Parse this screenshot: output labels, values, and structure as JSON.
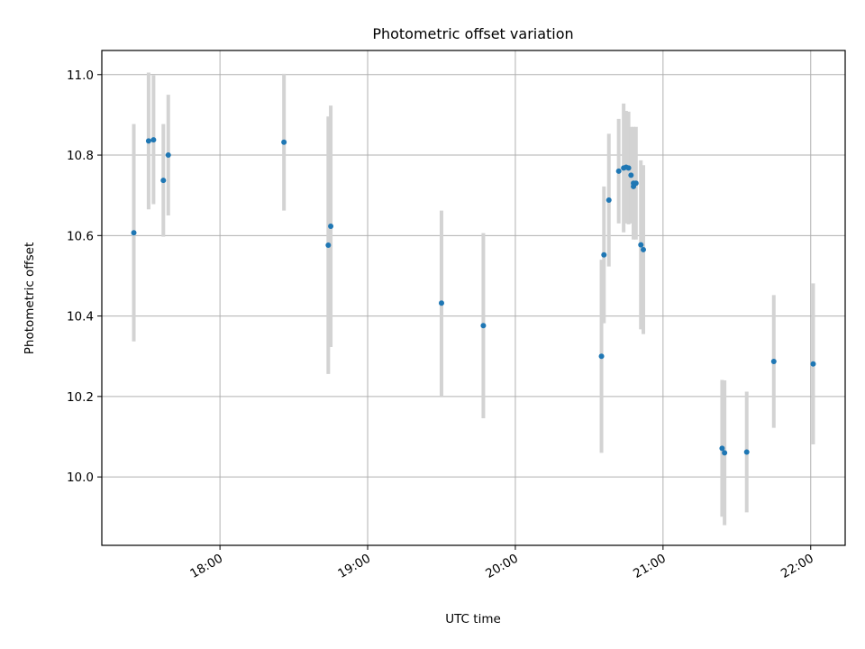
{
  "chart_data": {
    "type": "scatter",
    "title": "Photometric offset variation",
    "xlabel": "UTC time",
    "ylabel": "Photometric offset",
    "x_ticks": [
      "18:00",
      "19:00",
      "20:00",
      "21:00",
      "22:00"
    ],
    "y_ticks": [
      "10.0",
      "10.2",
      "10.4",
      "10.6",
      "10.8",
      "11.0"
    ],
    "xlim": [
      "17:12",
      "22:14"
    ],
    "ylim": [
      9.83,
      11.06
    ],
    "grid": true,
    "colors": {
      "point": "#1f77b4",
      "errorbar": "#d3d3d3"
    },
    "points": [
      {
        "time": "17:25",
        "y": 10.607,
        "err": 0.27
      },
      {
        "time": "17:31",
        "y": 10.835,
        "err": 0.17
      },
      {
        "time": "17:33",
        "y": 10.838,
        "err": 0.16
      },
      {
        "time": "17:37",
        "y": 10.737,
        "err": 0.14
      },
      {
        "time": "17:39",
        "y": 10.8,
        "err": 0.15
      },
      {
        "time": "18:26",
        "y": 10.832,
        "err": 0.17
      },
      {
        "time": "18:44",
        "y": 10.576,
        "err": 0.32
      },
      {
        "time": "18:45",
        "y": 10.623,
        "err": 0.3
      },
      {
        "time": "19:30",
        "y": 10.432,
        "err": 0.23
      },
      {
        "time": "19:47",
        "y": 10.376,
        "err": 0.23
      },
      {
        "time": "20:35",
        "y": 10.3,
        "err": 0.24
      },
      {
        "time": "20:36",
        "y": 10.552,
        "err": 0.17
      },
      {
        "time": "20:38",
        "y": 10.688,
        "err": 0.165
      },
      {
        "time": "20:42",
        "y": 10.76,
        "err": 0.13
      },
      {
        "time": "20:44",
        "y": 10.768,
        "err": 0.16
      },
      {
        "time": "20:45",
        "y": 10.77,
        "err": 0.14
      },
      {
        "time": "20:46",
        "y": 10.768,
        "err": 0.14
      },
      {
        "time": "20:47",
        "y": 10.75,
        "err": 0.12
      },
      {
        "time": "20:48",
        "y": 10.73,
        "err": 0.14
      },
      {
        "time": "20:48",
        "y": 10.722,
        "err": 0.13
      },
      {
        "time": "20:49",
        "y": 10.73,
        "err": 0.14
      },
      {
        "time": "20:51",
        "y": 10.577,
        "err": 0.21
      },
      {
        "time": "20:52",
        "y": 10.565,
        "err": 0.21
      },
      {
        "time": "21:24",
        "y": 10.071,
        "err": 0.17
      },
      {
        "time": "21:25",
        "y": 10.06,
        "err": 0.18
      },
      {
        "time": "21:34",
        "y": 10.062,
        "err": 0.15
      },
      {
        "time": "21:45",
        "y": 10.287,
        "err": 0.165
      },
      {
        "time": "22:01",
        "y": 10.281,
        "err": 0.2
      }
    ]
  }
}
